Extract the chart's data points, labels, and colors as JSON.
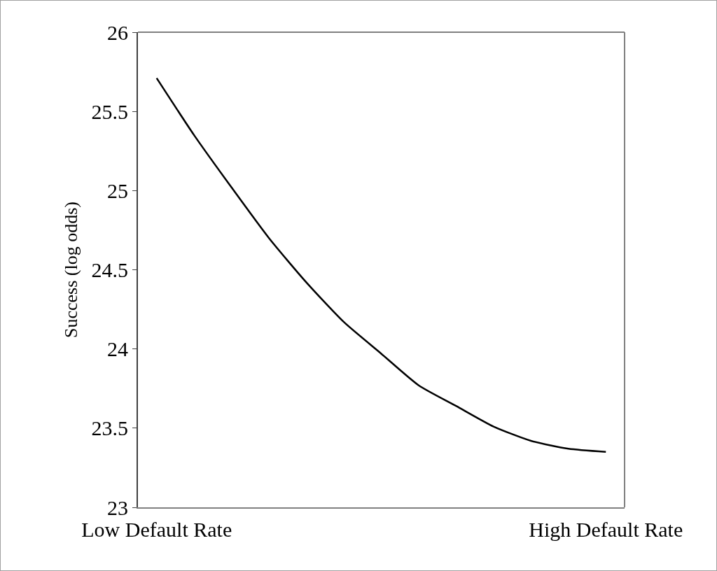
{
  "chart_data": {
    "type": "line",
    "ylabel": "Success (log odds)",
    "categories": [
      "Low Default Rate",
      null,
      null,
      null,
      null,
      null,
      null,
      null,
      null,
      null,
      null,
      null,
      "High Default Rate"
    ],
    "values": [
      25.71,
      25.35,
      25.02,
      24.7,
      24.42,
      24.17,
      23.97,
      23.77,
      23.64,
      23.51,
      23.42,
      23.37,
      23.35
    ],
    "color": "#000000",
    "ylim": [
      23,
      26
    ],
    "yticks": [
      23,
      23.5,
      24,
      24.5,
      25,
      25.5,
      26
    ],
    "grid": false,
    "marker": "none",
    "line_style": "solid"
  }
}
